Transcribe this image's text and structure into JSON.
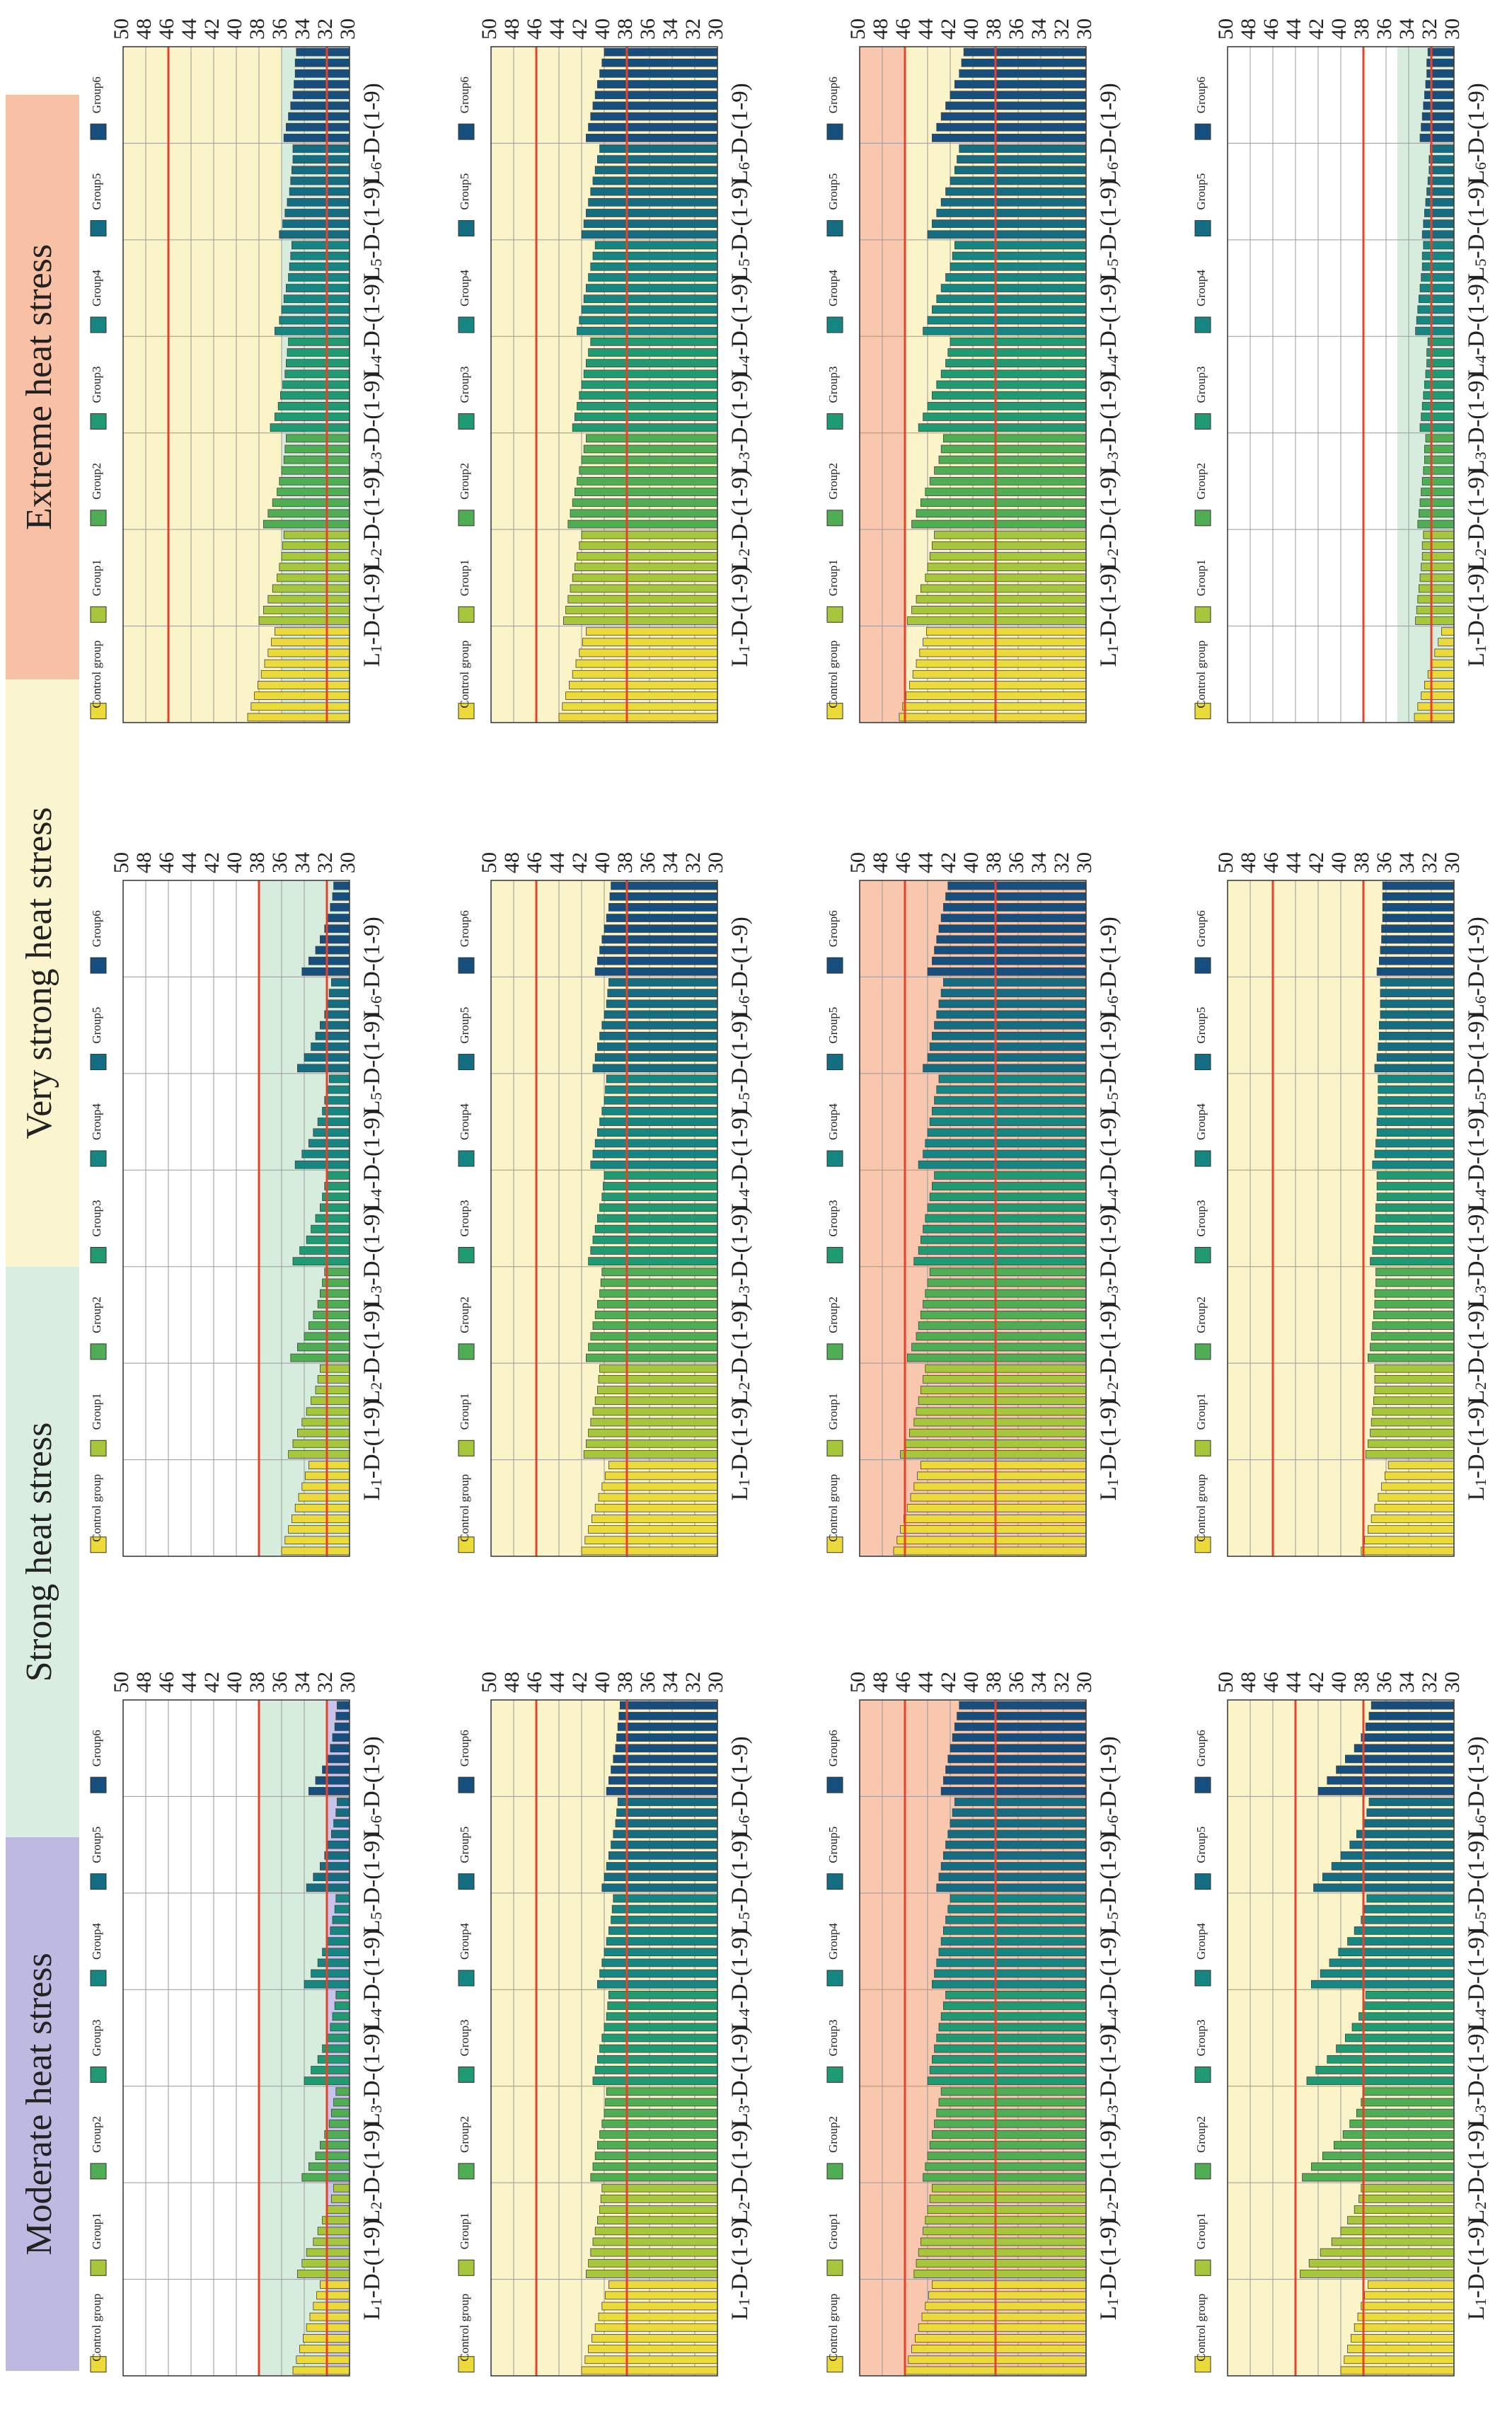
{
  "banners": [
    {
      "label": "Moderate heat stress",
      "color": "#bdb9e0"
    },
    {
      "label": "Strong heat stress",
      "color": "#d9eee0"
    },
    {
      "label": "Very strong heat stress",
      "color": "#fbf5cf"
    },
    {
      "label": "Extreme heat stress",
      "color": "#f8c1a5"
    }
  ],
  "legend": [
    {
      "label": "Control group",
      "color": "#ecd93a"
    },
    {
      "label": "Group1",
      "color": "#a6c63b"
    },
    {
      "label": "Group2",
      "color": "#4fae54"
    },
    {
      "label": "Group3",
      "color": "#1f9a72"
    },
    {
      "label": "Group4",
      "color": "#168682"
    },
    {
      "label": "Group5",
      "color": "#156d82"
    },
    {
      "label": "Group6",
      "color": "#164f7e"
    }
  ],
  "colors": {
    "threshold_line": "#e8412b",
    "band_strong": "#d6ecdd",
    "band_moderate": "#c7c4ec",
    "band_very_strong": "#fbf4c8",
    "band_extreme": "#f8c7ad",
    "gridline": "#9a9a9a",
    "bar_outline": "#444444"
  },
  "chart_data": {
    "type": "bar",
    "orientation": "rotated 90 degrees clockwise (value axis runs along the page width)",
    "layout": "3 columns x 4 rows of panels",
    "ylim": [
      30,
      50
    ],
    "y_ticks": [
      "50",
      "48",
      "46",
      "44",
      "42",
      "40",
      "38",
      "36",
      "34",
      "32",
      "30"
    ],
    "groups": [
      "L1-D-(1-9)",
      "L2-D-(1-9)",
      "L3-D-(1-9)",
      "L4-D-(1-9)",
      "L5-D-(1-9)",
      "L6-D-(1-9)"
    ],
    "group_labels": [
      {
        "prefix": "L",
        "sub": "1",
        "suffix": "-D-(1-9)"
      },
      {
        "prefix": "L",
        "sub": "2",
        "suffix": "-D-(1-9)"
      },
      {
        "prefix": "L",
        "sub": "3",
        "suffix": "-D-(1-9)"
      },
      {
        "prefix": "L",
        "sub": "4",
        "suffix": "-D-(1-9)"
      },
      {
        "prefix": "L",
        "sub": "5",
        "suffix": "-D-(1-9)"
      },
      {
        "prefix": "L",
        "sub": "6",
        "suffix": "-D-(1-9)"
      }
    ],
    "bars_per_group": 9,
    "panels": [
      {
        "column": 0,
        "row": 0,
        "background": "white",
        "bands": [
          {
            "from": 30,
            "to": 32,
            "color": "moderate"
          },
          {
            "from": 32,
            "to": 38,
            "color": "strong"
          }
        ],
        "thresholds": [
          32,
          38
        ],
        "control": 35.0,
        "groups": [
          [
            34.6,
            34.2,
            33.8,
            33.2,
            32.8,
            32.4,
            32.0,
            31.6,
            31.4
          ],
          [
            34.2,
            33.6,
            33.0,
            32.6,
            32.2,
            31.8,
            31.6,
            31.4,
            31.2
          ],
          [
            34.0,
            33.4,
            32.8,
            32.4,
            32.0,
            31.7,
            31.5,
            31.3,
            31.2
          ],
          [
            34.0,
            33.4,
            32.8,
            32.4,
            32.0,
            31.7,
            31.5,
            31.3,
            31.2
          ],
          [
            33.8,
            33.2,
            32.6,
            32.2,
            31.9,
            31.6,
            31.4,
            31.2,
            31.1
          ],
          [
            33.6,
            33.0,
            32.4,
            32.0,
            31.7,
            31.5,
            31.3,
            31.2,
            31.1
          ]
        ]
      },
      {
        "column": 0,
        "row": 1,
        "background": "very_strong",
        "bands": [],
        "thresholds": [
          38,
          46
        ],
        "control": 42.0,
        "groups": [
          [
            41.6,
            41.4,
            41.2,
            41.0,
            40.8,
            40.6,
            40.4,
            40.3,
            40.2
          ],
          [
            41.2,
            41.0,
            40.8,
            40.6,
            40.4,
            40.2,
            40.0,
            39.9,
            39.8
          ],
          [
            41.0,
            40.8,
            40.6,
            40.4,
            40.2,
            40.0,
            39.8,
            39.7,
            39.6
          ],
          [
            40.6,
            40.4,
            40.2,
            40.0,
            39.8,
            39.6,
            39.4,
            39.3,
            39.2
          ],
          [
            40.2,
            40.0,
            39.8,
            39.6,
            39.4,
            39.2,
            39.0,
            38.9,
            38.8
          ],
          [
            39.8,
            39.6,
            39.4,
            39.2,
            39.0,
            38.9,
            38.8,
            38.7,
            38.6
          ]
        ]
      },
      {
        "column": 0,
        "row": 2,
        "background": "extreme",
        "bands": [],
        "thresholds": [
          38,
          46
        ],
        "control": 46.0,
        "groups": [
          [
            45.2,
            45.0,
            44.8,
            44.6,
            44.4,
            44.2,
            44.0,
            43.8,
            43.6
          ],
          [
            44.4,
            44.2,
            44.0,
            43.8,
            43.6,
            43.4,
            43.2,
            43.0,
            42.8
          ],
          [
            44.0,
            43.8,
            43.6,
            43.4,
            43.2,
            43.0,
            42.8,
            42.6,
            42.4
          ],
          [
            43.6,
            43.4,
            43.2,
            43.0,
            42.8,
            42.6,
            42.4,
            42.2,
            42.0
          ],
          [
            43.2,
            43.0,
            42.8,
            42.6,
            42.4,
            42.2,
            42.0,
            41.8,
            41.6
          ],
          [
            42.8,
            42.6,
            42.4,
            42.2,
            42.0,
            41.8,
            41.6,
            41.4,
            41.2
          ]
        ]
      },
      {
        "column": 0,
        "row": 3,
        "background": "very_strong",
        "bands": [],
        "thresholds": [
          38,
          44
        ],
        "control": 40.0,
        "groups": [
          [
            43.6,
            42.8,
            41.8,
            40.8,
            40.0,
            39.4,
            38.8,
            38.4,
            38.2
          ],
          [
            43.4,
            42.6,
            41.6,
            40.6,
            39.8,
            39.2,
            38.6,
            38.2,
            38.0
          ],
          [
            43.0,
            42.2,
            41.2,
            40.4,
            39.6,
            39.0,
            38.4,
            38.0,
            37.8
          ],
          [
            42.6,
            41.8,
            41.0,
            40.2,
            39.4,
            38.8,
            38.2,
            37.9,
            37.7
          ],
          [
            42.4,
            41.6,
            40.8,
            40.0,
            39.2,
            38.6,
            38.0,
            37.7,
            37.5
          ],
          [
            42.0,
            41.2,
            40.4,
            39.6,
            38.8,
            38.2,
            37.8,
            37.5,
            37.3
          ]
        ]
      },
      {
        "column": 1,
        "row": 0,
        "background": "white",
        "bands": [
          {
            "from": 30,
            "to": 38,
            "color": "strong"
          }
        ],
        "thresholds": [
          32,
          38
        ],
        "control": 36.0,
        "groups": [
          [
            35.4,
            35.0,
            34.6,
            34.2,
            33.8,
            33.4,
            33.0,
            32.8,
            32.6
          ],
          [
            35.2,
            34.6,
            34.0,
            33.6,
            33.2,
            32.8,
            32.6,
            32.4,
            32.2
          ],
          [
            35.0,
            34.4,
            33.8,
            33.4,
            33.0,
            32.6,
            32.4,
            32.2,
            32.0
          ],
          [
            34.8,
            34.2,
            33.6,
            33.2,
            32.8,
            32.4,
            32.2,
            32.0,
            31.8
          ],
          [
            34.6,
            34.0,
            33.4,
            33.0,
            32.6,
            32.2,
            32.0,
            31.8,
            31.6
          ],
          [
            34.2,
            33.6,
            33.0,
            32.6,
            32.2,
            31.9,
            31.7,
            31.5,
            31.4
          ]
        ]
      },
      {
        "column": 1,
        "row": 1,
        "background": "very_strong",
        "bands": [],
        "thresholds": [
          38,
          46
        ],
        "control": 42.0,
        "groups": [
          [
            41.8,
            41.6,
            41.4,
            41.2,
            41.0,
            40.8,
            40.6,
            40.5,
            40.4
          ],
          [
            41.6,
            41.4,
            41.2,
            41.0,
            40.8,
            40.6,
            40.4,
            40.3,
            40.2
          ],
          [
            41.4,
            41.2,
            41.0,
            40.8,
            40.6,
            40.4,
            40.2,
            40.1,
            40.0
          ],
          [
            41.2,
            41.0,
            40.8,
            40.6,
            40.4,
            40.2,
            40.0,
            39.9,
            39.8
          ],
          [
            41.0,
            40.8,
            40.6,
            40.4,
            40.2,
            40.0,
            39.8,
            39.7,
            39.6
          ],
          [
            40.8,
            40.6,
            40.4,
            40.2,
            40.0,
            39.8,
            39.6,
            39.5,
            39.4
          ]
        ]
      },
      {
        "column": 1,
        "row": 2,
        "background": "extreme",
        "bands": [],
        "thresholds": [
          38,
          46
        ],
        "control": 47.0,
        "groups": [
          [
            46.4,
            46.0,
            45.6,
            45.2,
            45.0,
            44.8,
            44.6,
            44.4,
            44.2
          ],
          [
            45.8,
            45.4,
            45.0,
            44.8,
            44.6,
            44.4,
            44.2,
            44.0,
            43.8
          ],
          [
            45.2,
            44.8,
            44.6,
            44.4,
            44.2,
            44.0,
            43.8,
            43.6,
            43.4
          ],
          [
            44.8,
            44.4,
            44.2,
            44.0,
            43.8,
            43.6,
            43.4,
            43.2,
            43.0
          ],
          [
            44.4,
            44.0,
            43.8,
            43.6,
            43.4,
            43.2,
            43.0,
            42.8,
            42.6
          ],
          [
            44.0,
            43.6,
            43.4,
            43.2,
            43.0,
            42.8,
            42.6,
            42.4,
            42.2
          ]
        ]
      },
      {
        "column": 1,
        "row": 3,
        "background": "very_strong",
        "bands": [],
        "thresholds": [
          38,
          46
        ],
        "control": 38.2,
        "groups": [
          [
            37.8,
            37.6,
            37.4,
            37.3,
            37.2,
            37.1,
            37.0,
            37.0,
            37.0
          ],
          [
            37.6,
            37.4,
            37.3,
            37.2,
            37.1,
            37.0,
            37.0,
            36.9,
            36.9
          ],
          [
            37.4,
            37.2,
            37.1,
            37.0,
            36.9,
            36.9,
            36.8,
            36.8,
            36.8
          ],
          [
            37.2,
            37.0,
            36.9,
            36.8,
            36.8,
            36.7,
            36.7,
            36.7,
            36.7
          ],
          [
            37.0,
            36.8,
            36.7,
            36.6,
            36.6,
            36.5,
            36.5,
            36.5,
            36.5
          ],
          [
            36.8,
            36.6,
            36.5,
            36.4,
            36.4,
            36.3,
            36.3,
            36.3,
            36.3
          ]
        ]
      },
      {
        "column": 2,
        "row": 0,
        "background": "very_strong",
        "bands": [
          {
            "from": 30,
            "to": 36,
            "color": "strong"
          }
        ],
        "thresholds": [
          32,
          46
        ],
        "control": 39.0,
        "groups": [
          [
            38.0,
            37.6,
            37.2,
            36.8,
            36.4,
            36.2,
            36.0,
            35.9,
            35.8
          ],
          [
            37.6,
            37.2,
            36.8,
            36.4,
            36.2,
            36.0,
            35.8,
            35.7,
            35.6
          ],
          [
            37.0,
            36.6,
            36.3,
            36.1,
            35.9,
            35.7,
            35.6,
            35.5,
            35.4
          ],
          [
            36.6,
            36.2,
            36.0,
            35.8,
            35.6,
            35.4,
            35.3,
            35.2,
            35.1
          ],
          [
            36.2,
            35.9,
            35.7,
            35.5,
            35.3,
            35.2,
            35.1,
            35.0,
            35.0
          ],
          [
            35.8,
            35.6,
            35.4,
            35.2,
            35.0,
            34.9,
            34.8,
            34.8,
            34.7
          ]
        ]
      },
      {
        "column": 2,
        "row": 1,
        "background": "very_strong",
        "bands": [],
        "thresholds": [
          38,
          46
        ],
        "control": 44.0,
        "groups": [
          [
            43.6,
            43.4,
            43.2,
            43.0,
            42.8,
            42.6,
            42.4,
            42.2,
            42.0
          ],
          [
            43.2,
            43.0,
            42.8,
            42.6,
            42.4,
            42.2,
            42.0,
            41.8,
            41.6
          ],
          [
            42.8,
            42.6,
            42.4,
            42.2,
            42.0,
            41.8,
            41.6,
            41.4,
            41.2
          ],
          [
            42.4,
            42.2,
            42.0,
            41.8,
            41.6,
            41.4,
            41.2,
            41.0,
            40.8
          ],
          [
            42.0,
            41.8,
            41.6,
            41.4,
            41.2,
            41.0,
            40.8,
            40.6,
            40.4
          ],
          [
            41.6,
            41.4,
            41.2,
            41.0,
            40.8,
            40.6,
            40.4,
            40.2,
            40.0
          ]
        ]
      },
      {
        "column": 2,
        "row": 2,
        "background": "extreme",
        "bands": [
          {
            "from": 30,
            "to": 46,
            "color": "very_strong"
          }
        ],
        "thresholds": [
          38,
          46
        ],
        "control": 46.5,
        "groups": [
          [
            45.8,
            45.4,
            45.0,
            44.6,
            44.2,
            44.0,
            43.8,
            43.6,
            43.4
          ],
          [
            45.4,
            45.0,
            44.6,
            44.2,
            43.8,
            43.4,
            43.0,
            42.8,
            42.6
          ],
          [
            44.8,
            44.4,
            44.0,
            43.6,
            43.2,
            42.8,
            42.4,
            42.2,
            42.0
          ],
          [
            44.4,
            44.0,
            43.6,
            43.2,
            42.8,
            42.4,
            42.0,
            41.8,
            41.6
          ],
          [
            44.0,
            43.6,
            43.2,
            42.8,
            42.4,
            42.0,
            41.6,
            41.4,
            41.2
          ],
          [
            43.6,
            43.2,
            42.8,
            42.4,
            42.0,
            41.6,
            41.2,
            41.0,
            40.8
          ]
        ]
      },
      {
        "column": 2,
        "row": 3,
        "background": "white",
        "bands": [
          {
            "from": 30,
            "to": 35,
            "color": "strong"
          }
        ],
        "thresholds": [
          32,
          38
        ],
        "control": 33.5,
        "groups": [
          [
            33.4,
            33.3,
            33.2,
            33.1,
            33.0,
            32.9,
            32.8,
            32.8,
            32.7
          ],
          [
            33.2,
            33.1,
            33.0,
            32.9,
            32.8,
            32.7,
            32.6,
            32.6,
            32.5
          ],
          [
            33.0,
            32.9,
            32.8,
            32.7,
            32.6,
            32.5,
            32.4,
            32.4,
            32.3
          ],
          [
            33.4,
            33.3,
            33.2,
            33.1,
            33.0,
            32.9,
            32.8,
            32.8,
            32.7
          ],
          [
            32.8,
            32.7,
            32.6,
            32.5,
            32.4,
            32.3,
            32.2,
            32.2,
            32.1
          ],
          [
            33.0,
            32.9,
            32.8,
            32.7,
            32.6,
            32.5,
            32.4,
            32.4,
            32.3
          ]
        ]
      }
    ]
  }
}
